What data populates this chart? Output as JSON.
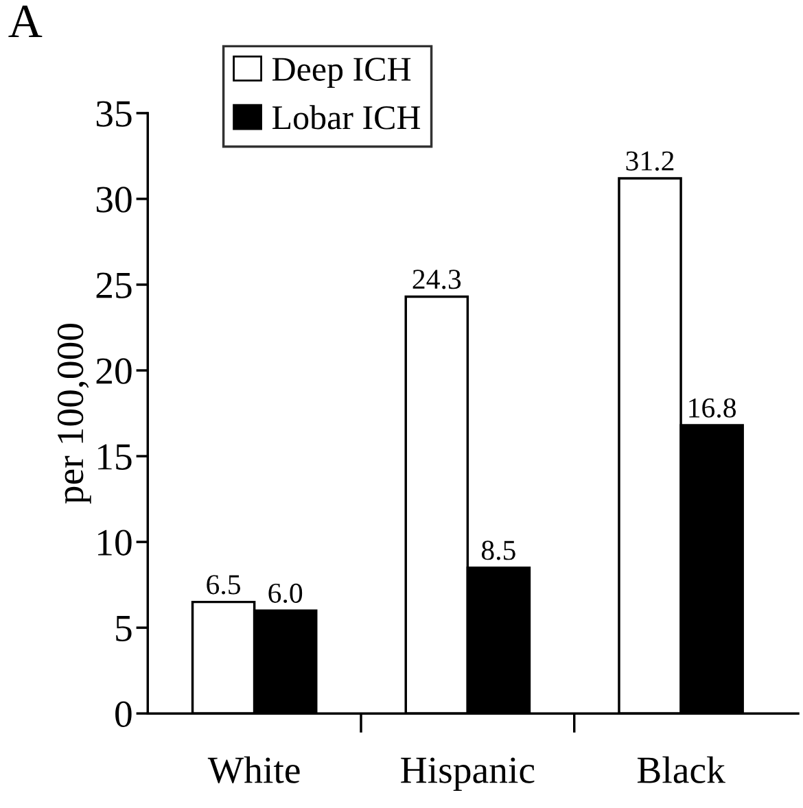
{
  "chart_data": {
    "type": "bar",
    "title": "A",
    "ylabel": "per 100,000",
    "categories": [
      "White",
      "Hispanic",
      "Black"
    ],
    "series": [
      {
        "name": "Deep ICH",
        "color": "#ffffff",
        "values": [
          6.5,
          24.3,
          31.2
        ],
        "value_labels": [
          "6.5",
          "24.3",
          "31.2"
        ]
      },
      {
        "name": "Lobar ICH",
        "color": "#000000",
        "values": [
          6.0,
          8.5,
          16.8
        ],
        "value_labels": [
          "6.0",
          "8.5",
          "16.8"
        ]
      }
    ],
    "ylim": [
      0,
      35
    ],
    "yticks": [
      0,
      5,
      10,
      15,
      20,
      25,
      30,
      35
    ],
    "grid": false,
    "legend": "top left"
  }
}
